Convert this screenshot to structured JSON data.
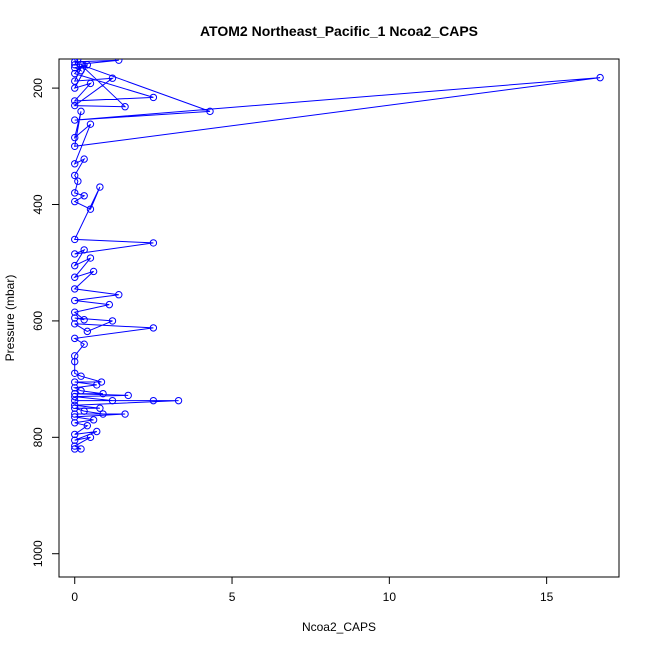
{
  "chart_data": {
    "type": "scatter",
    "title": "ATOM2 Northeast_Pacific_1 Ncoa2_CAPS",
    "xlabel": "Ncoa2_CAPS",
    "ylabel": "Pressure (mbar)",
    "xlim": [
      -0.5,
      17.3
    ],
    "ylim": [
      1040,
      150
    ],
    "y_reversed": true,
    "grid": false,
    "legend": "none",
    "x_ticks": [
      0,
      5,
      10,
      15
    ],
    "y_ticks": [
      200,
      400,
      600,
      800,
      1000
    ],
    "marker": "open-circle",
    "connected": true,
    "color": "#0000ff",
    "series": [
      {
        "points": [
          [
            0,
            820
          ],
          [
            0.2,
            820
          ],
          [
            0,
            815
          ],
          [
            0.5,
            800
          ],
          [
            0,
            805
          ],
          [
            0.7,
            790
          ],
          [
            0,
            795
          ],
          [
            0.4,
            780
          ],
          [
            0,
            775
          ],
          [
            0.6,
            770
          ],
          [
            0,
            765
          ],
          [
            1.6,
            760
          ],
          [
            0,
            760
          ],
          [
            0.9,
            760
          ],
          [
            0.3,
            755
          ],
          [
            0,
            750
          ],
          [
            0.8,
            750
          ],
          [
            0,
            745
          ],
          [
            3.3,
            737
          ],
          [
            0,
            737
          ],
          [
            2.5,
            737
          ],
          [
            1.2,
            737
          ],
          [
            0,
            730
          ],
          [
            1.7,
            728
          ],
          [
            0,
            725
          ],
          [
            0.9,
            725
          ],
          [
            0.2,
            720
          ],
          [
            0,
            715
          ],
          [
            0.7,
            710
          ],
          [
            0,
            705
          ],
          [
            0.85,
            705
          ],
          [
            0.2,
            695
          ],
          [
            0,
            690
          ],
          [
            0,
            670
          ],
          [
            0,
            660
          ],
          [
            0.3,
            640
          ],
          [
            0,
            630
          ],
          [
            2.5,
            612
          ],
          [
            0,
            605
          ],
          [
            0.4,
            618
          ],
          [
            1.2,
            600
          ],
          [
            0,
            595
          ],
          [
            0.3,
            598
          ],
          [
            0,
            585
          ],
          [
            1.1,
            572
          ],
          [
            0,
            565
          ],
          [
            1.4,
            555
          ],
          [
            0,
            545
          ],
          [
            0.6,
            515
          ],
          [
            0,
            525
          ],
          [
            0.5,
            492
          ],
          [
            0,
            505
          ],
          [
            0.3,
            478
          ],
          [
            0,
            485
          ],
          [
            2.5,
            466
          ],
          [
            0,
            460
          ],
          [
            0.8,
            370
          ],
          [
            0.5,
            408
          ],
          [
            0,
            395
          ],
          [
            0.3,
            385
          ],
          [
            0,
            380
          ],
          [
            0.1,
            360
          ],
          [
            0,
            350
          ],
          [
            0.3,
            322
          ],
          [
            0,
            330
          ],
          [
            0.5,
            262
          ],
          [
            0,
            285
          ],
          [
            0.2,
            240
          ],
          [
            0,
            300
          ],
          [
            16.7,
            182
          ],
          [
            0,
            255
          ],
          [
            4.3,
            240
          ],
          [
            0.2,
            160
          ],
          [
            1.6,
            232
          ],
          [
            0,
            230
          ],
          [
            1.2,
            183
          ],
          [
            0,
            188
          ],
          [
            0.25,
            160
          ],
          [
            0,
            175
          ],
          [
            2.5,
            216
          ],
          [
            0,
            222
          ],
          [
            0.5,
            192
          ],
          [
            0,
            200
          ],
          [
            0.4,
            160
          ],
          [
            0,
            165
          ],
          [
            0.2,
            170
          ],
          [
            0,
            155
          ],
          [
            1.4,
            152
          ],
          [
            0,
            160
          ],
          [
            0.1,
            150
          ]
        ]
      }
    ]
  }
}
